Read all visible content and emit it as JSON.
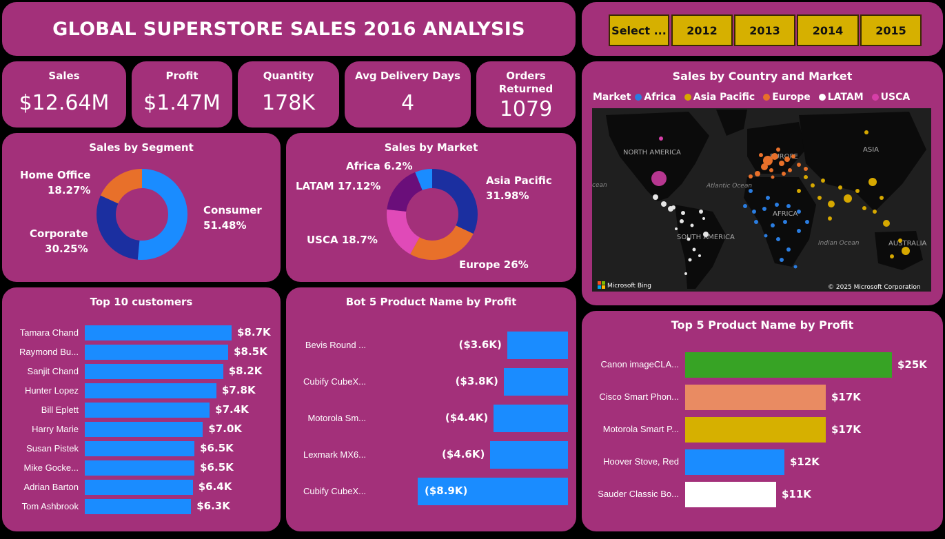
{
  "header": {
    "title": "GLOBAL SUPERSTORE SALES 2016 ANALYSIS"
  },
  "year_slicer": {
    "select_label": "Select ...",
    "years": [
      "2012",
      "2013",
      "2014",
      "2015"
    ]
  },
  "kpis": [
    {
      "label": "Sales",
      "value": "$12.64M"
    },
    {
      "label": "Profit",
      "value": "$1.47M"
    },
    {
      "label": "Quantity",
      "value": "178K"
    },
    {
      "label": "Avg Delivery Days",
      "value": "4"
    },
    {
      "label": "Orders Returned",
      "value": "1079"
    }
  ],
  "segment_chart": {
    "title": "Sales by Segment",
    "labels": [
      {
        "name": "Home Office",
        "pct": "18.27%"
      },
      {
        "name": "Corporate",
        "pct": "30.25%"
      },
      {
        "name": "Consumer",
        "pct": "51.48%"
      }
    ]
  },
  "market_chart": {
    "title": "Sales by Market",
    "labels": [
      {
        "text": "Africa 6.2%"
      },
      {
        "text": "LATAM 17.12%"
      },
      {
        "text": "USCA 18.7%"
      },
      {
        "name": "Asia Pacific",
        "pct": "31.98%"
      },
      {
        "text": "Europe 26%"
      }
    ]
  },
  "map_panel": {
    "title": "Sales by Country and Market",
    "legend_title": "Market",
    "legend": [
      {
        "name": "Africa",
        "color": "#2a7de1"
      },
      {
        "name": "Asia Pacific",
        "color": "#d6a800"
      },
      {
        "name": "Europe",
        "color": "#e8702a"
      },
      {
        "name": "LATAM",
        "color": "#ffffff"
      },
      {
        "name": "USCA",
        "color": "#d63fa8"
      }
    ],
    "regions": [
      "NORTH AMERICA",
      "EUROPE",
      "ASIA",
      "AFRICA",
      "SOUTH AMERICA",
      "AUSTRALIA"
    ],
    "oceans": [
      "Atlantic Ocean",
      "Indian Ocean",
      "cean"
    ],
    "bing": "Microsoft Bing",
    "copyright": "© 2025 Microsoft Corporation"
  },
  "top_customers": {
    "title": "Top 10 customers",
    "items": [
      {
        "name": "Tamara Chand",
        "label": "$8.7K"
      },
      {
        "name": "Raymond Bu...",
        "label": "$8.5K"
      },
      {
        "name": "Sanjit Chand",
        "label": "$8.2K"
      },
      {
        "name": "Hunter Lopez",
        "label": "$7.8K"
      },
      {
        "name": "Bill Eplett",
        "label": "$7.4K"
      },
      {
        "name": "Harry Marie",
        "label": "$7.0K"
      },
      {
        "name": "Susan Pistek",
        "label": "$6.5K"
      },
      {
        "name": "Mike Gocke...",
        "label": "$6.5K"
      },
      {
        "name": "Adrian Barton",
        "label": "$6.4K"
      },
      {
        "name": "Tom Ashbrook",
        "label": "$6.3K"
      }
    ]
  },
  "bottom_products": {
    "title": "Bot 5 Product Name by Profit",
    "items": [
      {
        "name": "Bevis Round ...",
        "label": "($3.6K)"
      },
      {
        "name": "Cubify CubeX...",
        "label": "($3.8K)"
      },
      {
        "name": "Motorola Sm...",
        "label": "($4.4K)"
      },
      {
        "name": "Lexmark MX6...",
        "label": "($4.6K)"
      },
      {
        "name": "Cubify CubeX...",
        "label": "($8.9K)"
      }
    ]
  },
  "top_products": {
    "title": "Top 5 Product Name by Profit",
    "items": [
      {
        "name": "Canon imageCLA...",
        "label": "$25K",
        "color": "#37a325"
      },
      {
        "name": "Cisco Smart Phon...",
        "label": "$17K",
        "color": "#e98b62"
      },
      {
        "name": "Motorola Smart P...",
        "label": "$17K",
        "color": "#d6b000"
      },
      {
        "name": "Hoover Stove, Red",
        "label": "$12K",
        "color": "#1a8cff"
      },
      {
        "name": "Sauder Classic Bo...",
        "label": "$11K",
        "color": "#ffffff"
      }
    ]
  },
  "colors": {
    "panel": "#a3307a",
    "bar_blue": "#1a8cff",
    "slicer": "#d6b000"
  }
}
